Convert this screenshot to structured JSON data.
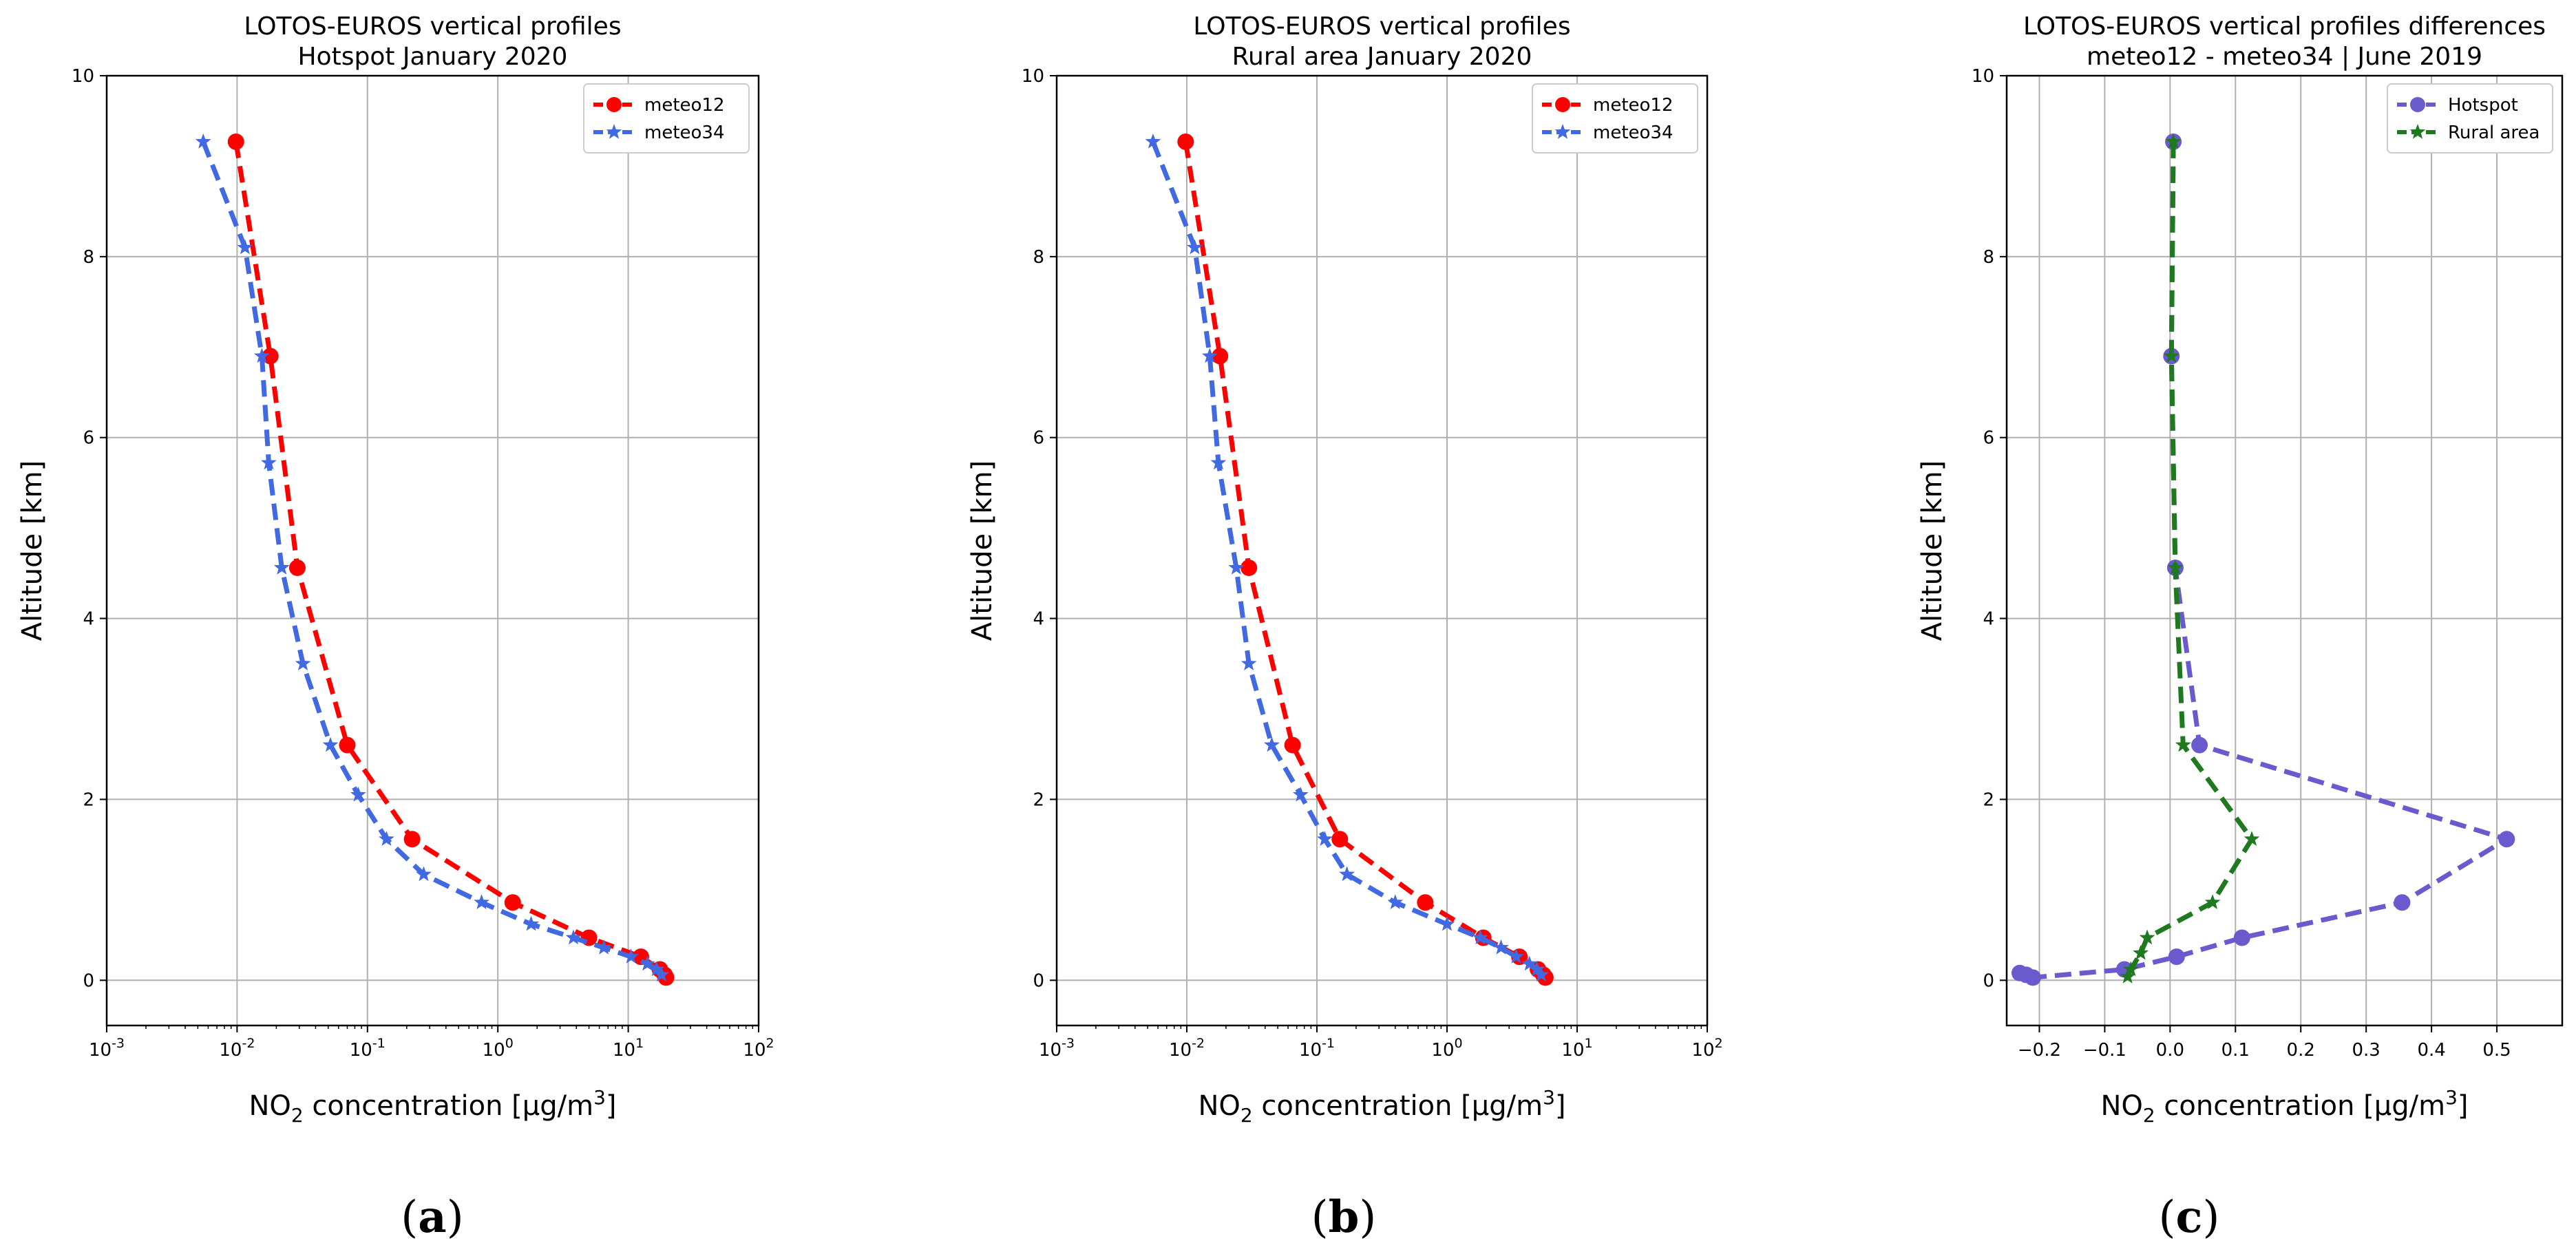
{
  "panels": [
    {
      "id": "a",
      "panel_label": "a",
      "chart_data": {
        "type": "line",
        "title": [
          "LOTOS-EUROS vertical profiles",
          "Hotspot January 2020"
        ],
        "xlabel": "NO2 concentration [μg/m3]",
        "ylabel": "Altitude [km]",
        "xscale": "log",
        "xlim": [
          0.001,
          100
        ],
        "ylim": [
          -0.5,
          10
        ],
        "xticks": [
          0.001,
          0.01,
          0.1,
          1,
          10,
          100
        ],
        "xtick_labels": [
          [
            "10",
            "-3"
          ],
          [
            "10",
            "-2"
          ],
          [
            "10",
            "-1"
          ],
          [
            "10",
            "0"
          ],
          [
            "10",
            "1"
          ],
          [
            "10",
            "2"
          ]
        ],
        "yticks": [
          0,
          2,
          4,
          6,
          8,
          10
        ],
        "ytick_labels": [
          "0",
          "2",
          "4",
          "6",
          "8",
          "10"
        ],
        "grid": true,
        "legend_position": "top-right",
        "series": [
          {
            "name": "meteo12",
            "color": "#ff0000",
            "marker": "circle",
            "x": [
              0.0098,
              0.018,
              0.029,
              0.07,
              0.22,
              1.3,
              5.0,
              12.5,
              17.5,
              19.0,
              19.5
            ],
            "y": [
              9.27,
              6.9,
              4.56,
              2.6,
              1.56,
              0.86,
              0.47,
              0.26,
              0.12,
              0.06,
              0.03
            ]
          },
          {
            "name": "meteo34",
            "color": "#4169e1",
            "marker": "star",
            "x": [
              0.0055,
              0.0115,
              0.0155,
              0.0175,
              0.022,
              0.032,
              0.052,
              0.085,
              0.14,
              0.27,
              0.75,
              1.8,
              3.8,
              6.5,
              10.5,
              14.0,
              16.5,
              18.0
            ],
            "y": [
              9.27,
              8.1,
              6.9,
              5.72,
              4.56,
              3.5,
              2.6,
              2.05,
              1.56,
              1.17,
              0.86,
              0.62,
              0.47,
              0.36,
              0.26,
              0.18,
              0.12,
              0.06
            ]
          }
        ]
      }
    },
    {
      "id": "b",
      "panel_label": "b",
      "chart_data": {
        "type": "line",
        "title": [
          "LOTOS-EUROS vertical profiles",
          "Rural area January 2020"
        ],
        "xlabel": "NO2 concentration [μg/m3]",
        "ylabel": "Altitude [km]",
        "xscale": "log",
        "xlim": [
          0.001,
          100
        ],
        "ylim": [
          -0.5,
          10
        ],
        "xticks": [
          0.001,
          0.01,
          0.1,
          1,
          10,
          100
        ],
        "xtick_labels": [
          [
            "10",
            "-3"
          ],
          [
            "10",
            "-2"
          ],
          [
            "10",
            "-1"
          ],
          [
            "10",
            "0"
          ],
          [
            "10",
            "1"
          ],
          [
            "10",
            "2"
          ]
        ],
        "yticks": [
          0,
          2,
          4,
          6,
          8,
          10
        ],
        "ytick_labels": [
          "0",
          "2",
          "4",
          "6",
          "8",
          "10"
        ],
        "grid": true,
        "legend_position": "top-right",
        "series": [
          {
            "name": "meteo12",
            "color": "#ff0000",
            "marker": "circle",
            "x": [
              0.0098,
              0.018,
              0.03,
              0.065,
              0.15,
              0.68,
              1.9,
              3.6,
              5.0,
              5.5,
              5.7
            ],
            "y": [
              9.27,
              6.9,
              4.56,
              2.6,
              1.56,
              0.86,
              0.47,
              0.26,
              0.12,
              0.06,
              0.03
            ]
          },
          {
            "name": "meteo34",
            "color": "#4169e1",
            "marker": "star",
            "x": [
              0.0055,
              0.0115,
              0.015,
              0.0175,
              0.024,
              0.03,
              0.045,
              0.075,
              0.115,
              0.17,
              0.4,
              1.0,
              1.8,
              2.6,
              3.4,
              4.3,
              4.9,
              5.3
            ],
            "y": [
              9.27,
              8.1,
              6.9,
              5.72,
              4.56,
              3.5,
              2.6,
              2.05,
              1.56,
              1.17,
              0.86,
              0.62,
              0.47,
              0.36,
              0.26,
              0.18,
              0.12,
              0.06
            ]
          }
        ]
      }
    },
    {
      "id": "c",
      "panel_label": "c",
      "chart_data": {
        "type": "line",
        "title": [
          "LOTOS-EUROS vertical profiles differences",
          "meteo12 - meteo34 | June 2019"
        ],
        "xlabel": "NO2 concentration [μg/m3]",
        "ylabel": "Altitude [km]",
        "xscale": "linear",
        "xlim": [
          -0.25,
          0.6
        ],
        "ylim": [
          -0.5,
          10
        ],
        "xticks": [
          -0.2,
          -0.1,
          0.0,
          0.1,
          0.2,
          0.3,
          0.4,
          0.5
        ],
        "xtick_labels": [
          "−0.2",
          "−0.1",
          "0.0",
          "0.1",
          "0.2",
          "0.3",
          "0.4",
          "0.5"
        ],
        "yticks": [
          0,
          2,
          4,
          6,
          8,
          10
        ],
        "ytick_labels": [
          "0",
          "2",
          "4",
          "6",
          "8",
          "10"
        ],
        "grid": true,
        "legend_position": "top-right",
        "series": [
          {
            "name": "Hotspot",
            "color": "#6a5acd",
            "marker": "circle",
            "x": [
              0.005,
              0.002,
              0.008,
              0.045,
              0.515,
              0.355,
              0.11,
              0.01,
              -0.07,
              -0.21,
              -0.22,
              -0.23
            ],
            "y": [
              9.27,
              6.9,
              4.56,
              2.6,
              1.56,
              0.86,
              0.47,
              0.26,
              0.12,
              0.03,
              0.06,
              0.08
            ]
          },
          {
            "name": "Rural area",
            "color": "#1f7a1f",
            "marker": "star",
            "x": [
              0.005,
              0.002,
              0.008,
              0.02,
              0.125,
              0.065,
              -0.035,
              -0.045,
              -0.06,
              -0.065
            ],
            "y": [
              9.27,
              6.9,
              4.56,
              2.6,
              1.56,
              0.86,
              0.47,
              0.3,
              0.12,
              0.04
            ]
          }
        ]
      }
    }
  ]
}
